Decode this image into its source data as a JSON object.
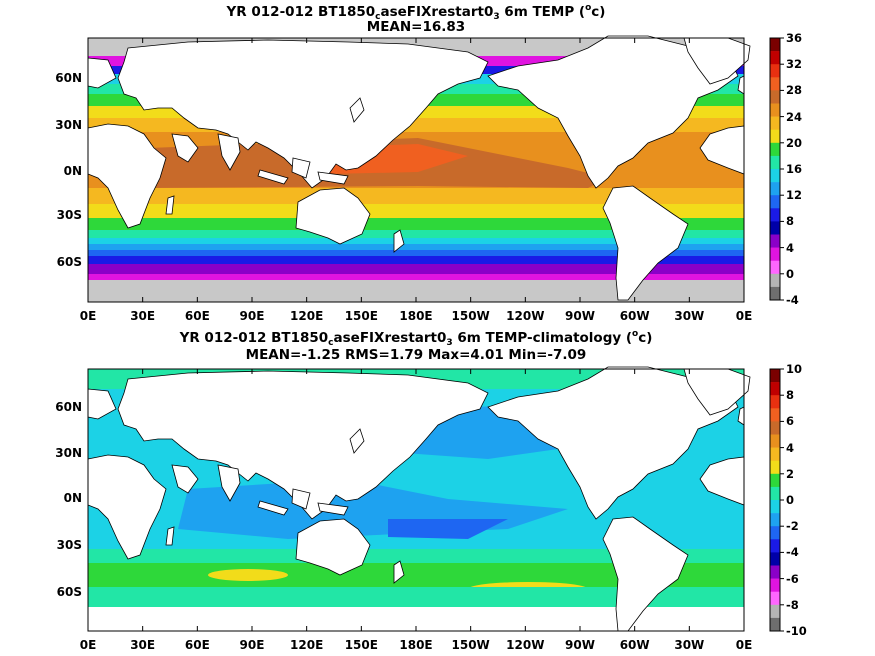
{
  "panels": [
    {
      "title_main": "YR 012-012 BT1850",
      "title_sub": "c",
      "title_rest": "aseFIXrestart0",
      "title_sub2": "3",
      "title_tail": " 6m TEMP (",
      "title_sup": "o",
      "title_end": "c)",
      "stats": "MEAN=16.83",
      "colorbar": {
        "levels": [
          "36",
          "32",
          "28",
          "24",
          "20",
          "16",
          "12",
          "8",
          "4",
          "0",
          "-4"
        ],
        "colors": [
          "#7a0000",
          "#c00000",
          "#e83010",
          "#f06020",
          "#c86a2a",
          "#e8901e",
          "#f5b820",
          "#f2dc1a",
          "#2ed83a",
          "#22e6a6",
          "#1cd2e6",
          "#1ea2f0",
          "#1e66f2",
          "#1a1ae6",
          "#0000a8",
          "#8a00c8",
          "#e014e0",
          "#ff66ff",
          "#b4b4b4",
          "#6e6e6e"
        ]
      }
    },
    {
      "title_main": "YR 012-012 BT1850",
      "title_sub": "c",
      "title_rest": "aseFIXrestart0",
      "title_sub2": "3",
      "title_tail": " 6m TEMP-climatology (",
      "title_sup": "o",
      "title_end": "c)",
      "stats": "MEAN=-1.25   RMS=1.79   Max=4.01   Min=-7.09",
      "colorbar": {
        "levels": [
          "10",
          "8",
          "6",
          "4",
          "2",
          "0",
          "-2",
          "-4",
          "-6",
          "-8",
          "-10"
        ],
        "colors": [
          "#7a0000",
          "#c00000",
          "#e83010",
          "#f06020",
          "#c86a2a",
          "#e8901e",
          "#f5b820",
          "#f2dc1a",
          "#2ed83a",
          "#22e6a6",
          "#1cd2e6",
          "#1ea2f0",
          "#1e66f2",
          "#1a1ae6",
          "#0000a8",
          "#8a00c8",
          "#e014e0",
          "#ff66ff",
          "#b4b4b4",
          "#6e6e6e"
        ]
      }
    }
  ],
  "lat_labels": [
    "60N",
    "30N",
    "0N",
    "30S",
    "60S"
  ],
  "lon_labels": [
    "0E",
    "30E",
    "60E",
    "90E",
    "120E",
    "150E",
    "180E",
    "150W",
    "120W",
    "90W",
    "60W",
    "30W",
    "0E"
  ]
}
